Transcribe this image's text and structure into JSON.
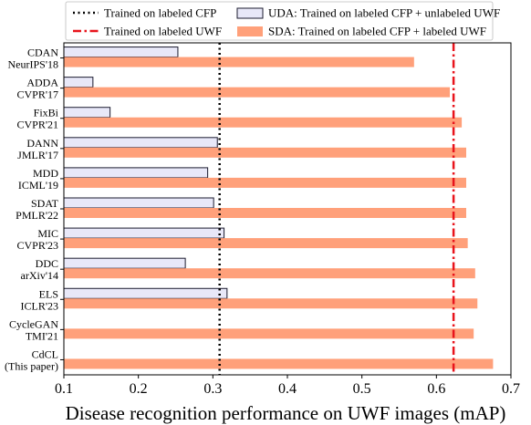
{
  "chart_data": {
    "type": "bar",
    "orientation": "horizontal",
    "xlabel": "Disease recognition performance on UWF images (mAP)",
    "xlim": [
      0.1,
      0.7
    ],
    "xticks": [
      0.1,
      0.2,
      0.3,
      0.4,
      0.5,
      0.6,
      0.7
    ],
    "xtick_labels": [
      "0.1",
      "0.2",
      "0.3",
      "0.4",
      "0.5",
      "0.6",
      "0.7"
    ],
    "categories": [
      {
        "line1": "CDAN",
        "line2": "NeurIPS'18"
      },
      {
        "line1": "ADDA",
        "line2": "CVPR'17"
      },
      {
        "line1": "FixBi",
        "line2": "CVPR'21"
      },
      {
        "line1": "DANN",
        "line2": "JMLR'17"
      },
      {
        "line1": "MDD",
        "line2": "ICML'19"
      },
      {
        "line1": "SDAT",
        "line2": "PMLR'22"
      },
      {
        "line1": "MIC",
        "line2": "CVPR'23"
      },
      {
        "line1": "DDC",
        "line2": "arXiv'14"
      },
      {
        "line1": "ELS",
        "line2": "ICLR'23"
      },
      {
        "line1": "CycleGAN",
        "line2": "TMI'21"
      },
      {
        "line1": "CdCL",
        "line2": "(This paper)"
      }
    ],
    "series": [
      {
        "name": "UDA: Trained on labeled CFP + unlabeled UWF",
        "color": "#e8e8f8",
        "edge_color": "#1a1a2e",
        "values": [
          0.253,
          0.139,
          0.162,
          0.306,
          0.293,
          0.301,
          0.315,
          0.263,
          0.319,
          null,
          null
        ]
      },
      {
        "name": "SDA: Trained on labeled CFP + labeled UWF",
        "color": "#ffa07a",
        "values": [
          0.57,
          0.618,
          0.634,
          0.64,
          0.64,
          0.64,
          0.642,
          0.652,
          0.655,
          0.65,
          0.676
        ]
      }
    ],
    "reference_lines": [
      {
        "name": "Trained on labeled CFP",
        "value": 0.309,
        "style": "dotted",
        "color": "#000000"
      },
      {
        "name": "Trained on labeled UWF",
        "value": 0.623,
        "style": "dashdot",
        "color": "#e8141c"
      }
    ],
    "legend_position": "top",
    "grid": false
  }
}
